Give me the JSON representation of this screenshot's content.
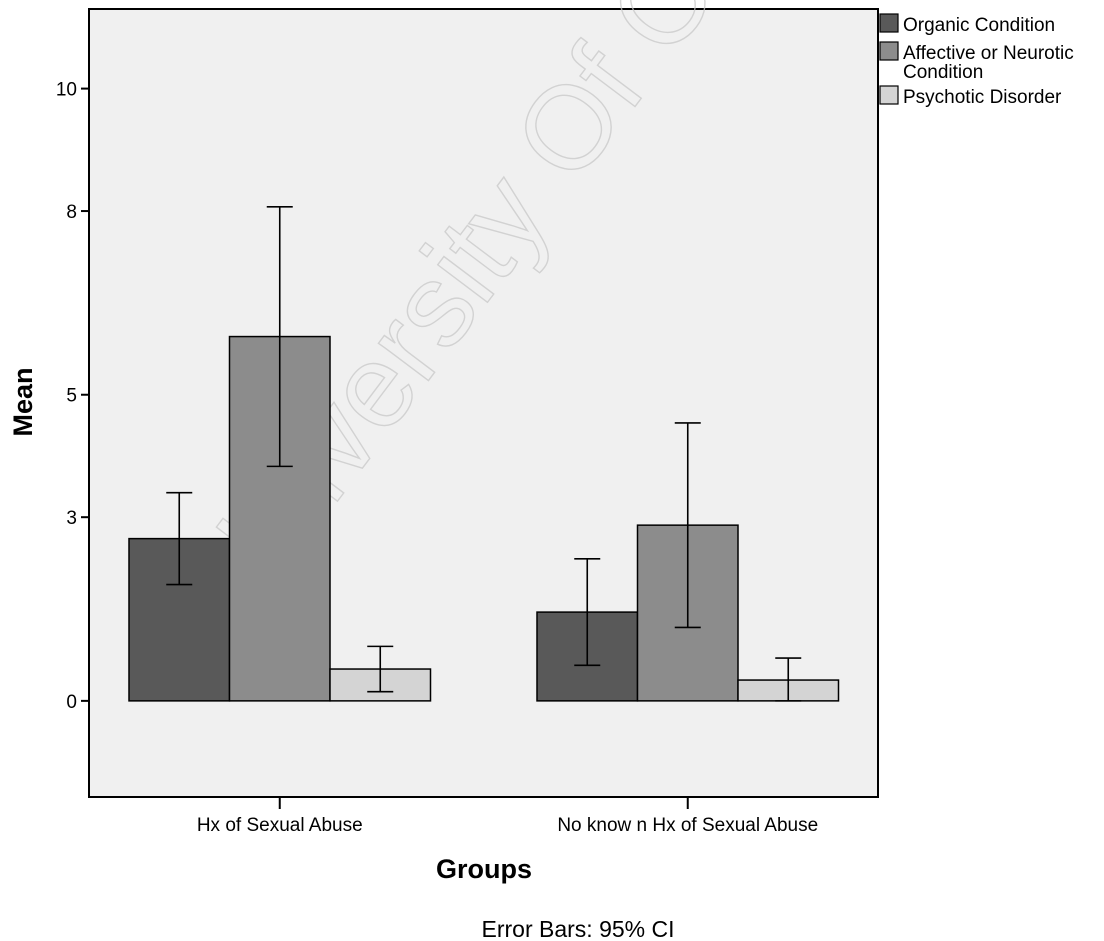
{
  "chart_data": {
    "type": "bar",
    "title": "",
    "xlabel": "Groups",
    "ylabel": "Mean",
    "ylim": [
      -1.57,
      11.3
    ],
    "yticks": [
      0,
      3,
      5,
      8,
      10
    ],
    "categories": [
      "Hx of Sexual Abuse",
      "No know n Hx of Sexual Abuse"
    ],
    "series": [
      {
        "name": "Organic Condition",
        "color": "#595959",
        "values": [
          2.65,
          1.45
        ],
        "ci_low": [
          1.9,
          0.58
        ],
        "ci_high": [
          3.4,
          2.32
        ]
      },
      {
        "name": "Affective or Neurotic\nCondition",
        "color": "#8c8c8c",
        "values": [
          5.95,
          2.87
        ],
        "ci_low": [
          3.83,
          1.2
        ],
        "ci_high": [
          8.07,
          4.54
        ]
      },
      {
        "name": "Psychotic Disorder",
        "color": "#d4d4d4",
        "values": [
          0.52,
          0.34
        ],
        "ci_low": [
          0.15,
          0.0
        ],
        "ci_high": [
          0.89,
          0.7
        ]
      }
    ],
    "grid": false,
    "legend": "right",
    "plot_background": "#f0f0f0",
    "footnote": "Error Bars: 95% CI",
    "watermark": "University Of Cape To"
  }
}
